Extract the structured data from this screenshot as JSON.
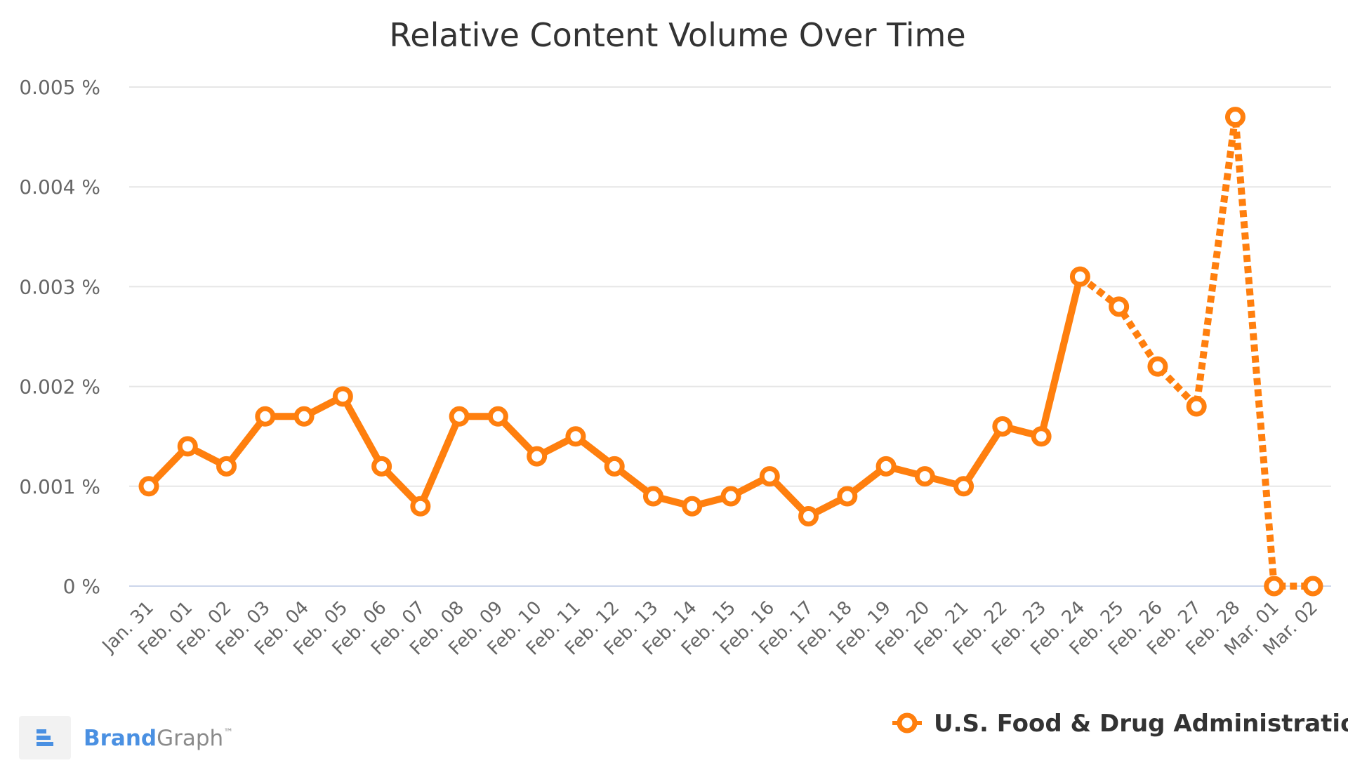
{
  "chart_data": {
    "type": "line",
    "title": "Relative Content Volume Over Time",
    "xlabel": "",
    "ylabel": "",
    "ylim": [
      0,
      0.005
    ],
    "y_tick_labels": [
      "0 %",
      "0.001 %",
      "0.002 %",
      "0.003 %",
      "0.004 %",
      "0.005 %"
    ],
    "y_tick_values": [
      0,
      0.001,
      0.002,
      0.003,
      0.004,
      0.005
    ],
    "categories": [
      "Jan. 31",
      "Feb. 01",
      "Feb. 02",
      "Feb. 03",
      "Feb. 04",
      "Feb. 05",
      "Feb. 06",
      "Feb. 07",
      "Feb. 08",
      "Feb. 09",
      "Feb. 10",
      "Feb. 11",
      "Feb. 12",
      "Feb. 13",
      "Feb. 14",
      "Feb. 15",
      "Feb. 16",
      "Feb. 17",
      "Feb. 18",
      "Feb. 19",
      "Feb. 20",
      "Feb. 21",
      "Feb. 22",
      "Feb. 23",
      "Feb. 24",
      "Feb. 25",
      "Feb. 26",
      "Feb. 27",
      "Feb. 28",
      "Mar. 01",
      "Mar. 02"
    ],
    "series": [
      {
        "name": "U.S. Food & Drug Administration",
        "color": "#ff7f0e",
        "values": [
          0.001,
          0.0014,
          0.0012,
          0.0017,
          0.0017,
          0.0019,
          0.0012,
          0.0008,
          0.0017,
          0.0017,
          0.0013,
          0.0015,
          0.0012,
          0.0009,
          0.0008,
          0.0009,
          0.0011,
          0.0007,
          0.0009,
          0.0012,
          0.0011,
          0.001,
          0.0016,
          0.0015,
          0.0031,
          0.0028,
          0.0022,
          0.0018,
          0.0047,
          0.0,
          0.0
        ],
        "solid_through": "Feb. 24",
        "dotted_after": "Feb. 24"
      }
    ],
    "grid": true,
    "legend_position": "bottom-right"
  },
  "branding": {
    "brand_part": "Brand",
    "graph_part": "Graph",
    "trademark": "™",
    "brand_color": "#4a90e2",
    "graph_color": "#8a8a8a",
    "icon": "brandgraph-logo-icon"
  },
  "colors": {
    "grid": "#e6e6e6",
    "baseline": "#ccd6eb",
    "text": "#333333",
    "axis_text": "#666666"
  }
}
